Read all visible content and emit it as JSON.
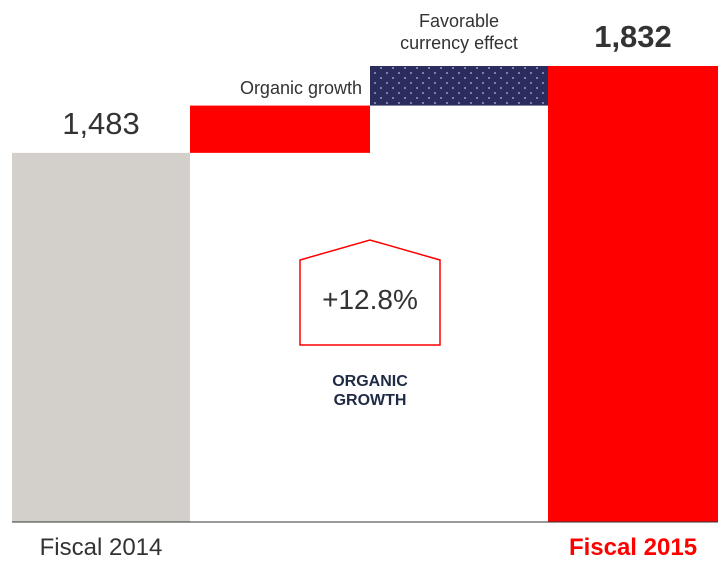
{
  "chart_data": {
    "type": "waterfall",
    "categories": [
      "Fiscal 2014",
      "Organic growth",
      "Favorable currency effect",
      "Fiscal 2015"
    ],
    "values": [
      1483,
      190,
      159,
      1832
    ],
    "value_labels": [
      "1,483",
      null,
      null,
      "1,832"
    ],
    "measure": [
      "total",
      "relative",
      "relative",
      "total"
    ],
    "colors": [
      "#d3d0cb",
      "#ff0000",
      "#2b2d5e",
      "#ff0000"
    ],
    "annotation": {
      "value_label": "+12.8%",
      "text": "ORGANIC GROWTH"
    }
  }
}
